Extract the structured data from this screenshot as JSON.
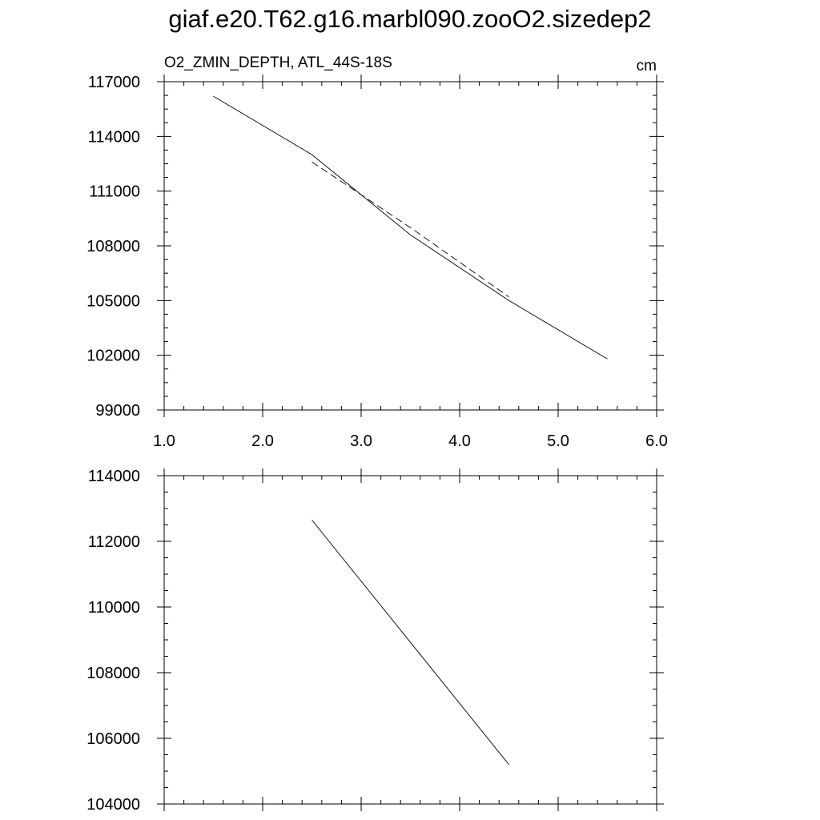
{
  "title": "giaf.e20.T62.g16.marbl090.zooO2.sizedep2",
  "chart_data": [
    {
      "type": "line",
      "subtitle_left": "O2_ZMIN_DEPTH, ATL_44S-18S",
      "subtitle_right": "cm",
      "xlim": [
        1.0,
        6.0
      ],
      "ylim": [
        99000,
        117000
      ],
      "x_ticks": [
        1.0,
        2.0,
        3.0,
        4.0,
        5.0,
        6.0
      ],
      "x_tick_labels": [
        "1.0",
        "2.0",
        "3.0",
        "4.0",
        "5.0",
        "6.0"
      ],
      "y_ticks": [
        99000,
        102000,
        105000,
        108000,
        111000,
        114000,
        117000
      ],
      "y_tick_labels": [
        "99000",
        "102000",
        "105000",
        "108000",
        "111000",
        "114000",
        "117000"
      ],
      "grid": false,
      "series": [
        {
          "style": "solid",
          "x": [
            1.5,
            2.5,
            3.5,
            4.5,
            5.5
          ],
          "y": [
            116200,
            113000,
            108600,
            105000,
            101800
          ]
        },
        {
          "style": "dashed",
          "x": [
            2.5,
            3.5,
            4.5
          ],
          "y": [
            112600,
            109000,
            105200
          ]
        }
      ]
    },
    {
      "type": "line",
      "xlim": [
        1.0,
        6.0
      ],
      "ylim": [
        104000,
        114000
      ],
      "x_ticks": [
        1.0,
        2.0,
        3.0,
        4.0,
        5.0,
        6.0
      ],
      "y_ticks": [
        104000,
        106000,
        108000,
        110000,
        112000,
        114000
      ],
      "y_tick_labels": [
        "104000",
        "106000",
        "108000",
        "110000",
        "112000",
        "114000"
      ],
      "grid": false,
      "series": [
        {
          "style": "solid",
          "x": [
            2.5,
            4.5
          ],
          "y": [
            112650,
            105200
          ]
        }
      ]
    }
  ]
}
